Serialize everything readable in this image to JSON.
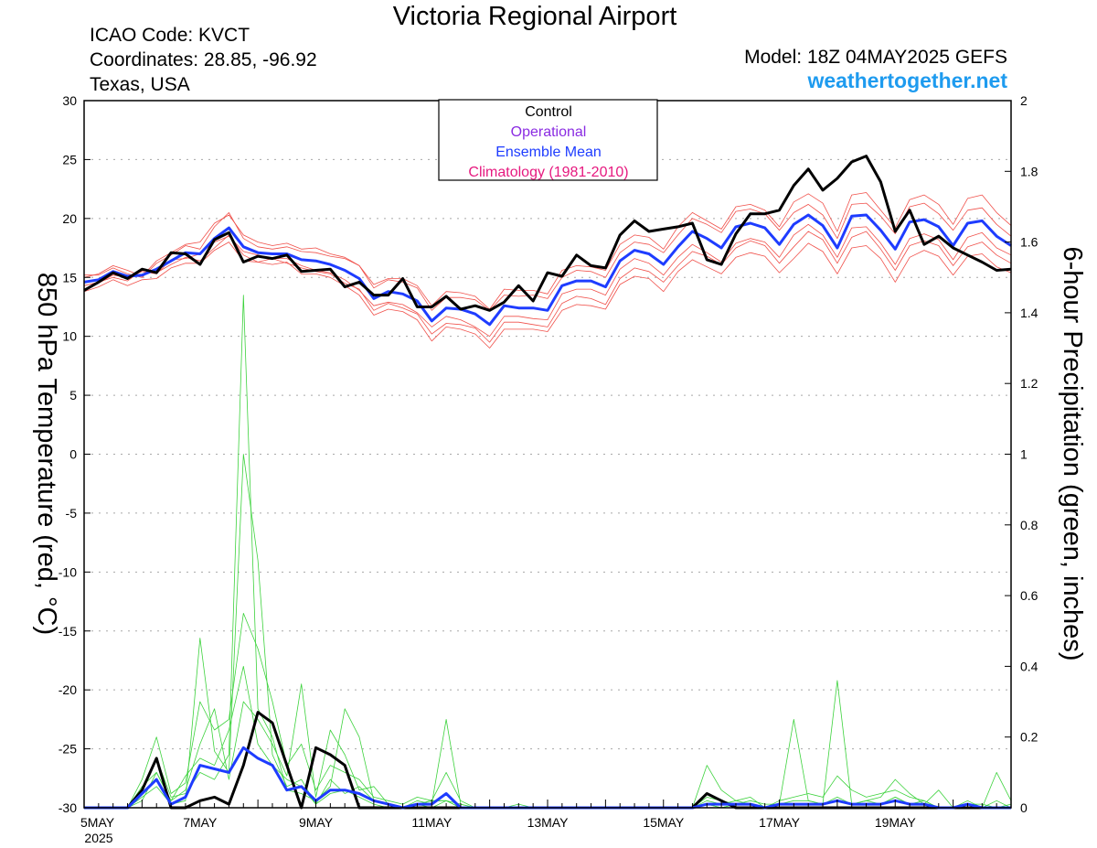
{
  "header": {
    "title": "Victoria Regional Airport",
    "icao": "ICAO Code: KVCT",
    "coordinates": "Coordinates: 28.85, -96.92",
    "region": "Texas, USA",
    "model": "Model: 18Z 04MAY2025 GEFS",
    "site": "weathertogether.net"
  },
  "colors": {
    "control": "#000000",
    "operational": "#8a2be2",
    "ensemble_mean": "#1e3cff",
    "climatology": "#e6197f",
    "temperature_members": "#f0504a",
    "precip_members": "#3cd23c",
    "site": "#1e9bef"
  },
  "chart_data": {
    "type": "line",
    "title": "Victoria Regional Airport",
    "xlabel": "",
    "y_left_label": "850 hPa Temperature (red, °C)",
    "y_right_label": "6-hour Precipitation (green, inches)",
    "y_left_lim": [
      -30,
      30
    ],
    "y_left_ticks": [
      "30",
      "25",
      "20",
      "15",
      "10",
      "5",
      "0",
      "-5",
      "-10",
      "-15",
      "-20",
      "-25",
      "-30"
    ],
    "y_right_lim": [
      0,
      2
    ],
    "y_right_ticks": [
      "2",
      "1.8",
      "1.6",
      "1.4",
      "1.2",
      "1",
      "0.8",
      "0.6",
      "0.4",
      "0.2",
      "0"
    ],
    "x_range_days": [
      0,
      16
    ],
    "x_tick_labels": [
      {
        "day": 0,
        "label": "5MAY"
      },
      {
        "day": 2,
        "label": "7MAY"
      },
      {
        "day": 4,
        "label": "9MAY"
      },
      {
        "day": 6,
        "label": "11MAY"
      },
      {
        "day": 8,
        "label": "13MAY"
      },
      {
        "day": 10,
        "label": "15MAY"
      },
      {
        "day": 12,
        "label": "17MAY"
      },
      {
        "day": 14,
        "label": "19MAY"
      }
    ],
    "x_year_label": "2025",
    "grid": true,
    "legend_position": "top-center",
    "legend": [
      "Control",
      "Operational",
      "Ensemble Mean",
      "Climatology (1981-2010)"
    ],
    "step_hours": 6,
    "series": [
      {
        "name": "Control",
        "axis": "left",
        "values": [
          13.9,
          14.6,
          15.4,
          14.9,
          15.7,
          15.4,
          17.1,
          17.0,
          16.1,
          18.2,
          18.8,
          16.3,
          16.8,
          16.6,
          16.9,
          15.5,
          15.6,
          15.7,
          14.2,
          14.6,
          13.5,
          13.5,
          14.9,
          12.5,
          12.5,
          13.4,
          12.3,
          12.6,
          12.2,
          12.9,
          14.3,
          13.0,
          15.4,
          15.1,
          16.9,
          16.0,
          15.8,
          18.6,
          19.8,
          18.9,
          19.1,
          19.3,
          19.6,
          16.5,
          16.1,
          18.7,
          20.4,
          20.4,
          20.7,
          22.8,
          24.2,
          22.4,
          23.4,
          24.8,
          25.3,
          23.1,
          18.9,
          20.7,
          17.8,
          18.5,
          17.5,
          16.9,
          16.3,
          15.6,
          15.7
        ]
      },
      {
        "name": "Ensemble Mean",
        "axis": "left",
        "values": [
          14.6,
          14.8,
          15.5,
          15.1,
          15.2,
          15.7,
          16.4,
          17.1,
          17.0,
          18.3,
          19.2,
          17.6,
          17.1,
          17.0,
          17.0,
          16.5,
          16.4,
          16.1,
          15.6,
          14.9,
          13.2,
          13.8,
          13.6,
          13.0,
          11.3,
          12.4,
          12.3,
          11.9,
          11.0,
          12.6,
          12.4,
          12.4,
          12.2,
          14.3,
          14.7,
          14.7,
          14.2,
          16.4,
          17.3,
          17.0,
          16.1,
          17.6,
          18.9,
          18.3,
          17.5,
          19.3,
          19.6,
          19.2,
          17.8,
          19.5,
          20.3,
          19.4,
          17.5,
          20.2,
          20.3,
          19.0,
          17.4,
          19.7,
          19.9,
          19.3,
          17.7,
          19.6,
          19.8,
          18.5,
          17.7
        ]
      },
      {
        "name": "Control precip",
        "axis": "right",
        "values": [
          0,
          0,
          0,
          0,
          0.05,
          0.14,
          0,
          0,
          0.02,
          0.03,
          0.01,
          0.12,
          0.27,
          0.24,
          0.12,
          0,
          0.17,
          0.15,
          0.12,
          0,
          0,
          0,
          0,
          0,
          0,
          0,
          0,
          0,
          0,
          0,
          0,
          0,
          0,
          0,
          0,
          0,
          0,
          0,
          0,
          0,
          0,
          0,
          0,
          0.04,
          0.02,
          0,
          0,
          0,
          0,
          0,
          0,
          0,
          0,
          0,
          0,
          0,
          0,
          0,
          0,
          0,
          0,
          0,
          0,
          0,
          0
        ]
      },
      {
        "name": "Ensemble Mean precip",
        "axis": "right",
        "values": [
          0,
          0,
          0,
          0,
          0.04,
          0.08,
          0.01,
          0.03,
          0.12,
          0.11,
          0.1,
          0.17,
          0.14,
          0.12,
          0.05,
          0.06,
          0.02,
          0.05,
          0.05,
          0.04,
          0.02,
          0.01,
          0,
          0.01,
          0.01,
          0.04,
          0,
          0,
          0,
          0,
          0,
          0,
          0,
          0,
          0,
          0,
          0,
          0,
          0,
          0,
          0,
          0,
          0,
          0.01,
          0.01,
          0.01,
          0.01,
          0,
          0.01,
          0.01,
          0.01,
          0.01,
          0.02,
          0.01,
          0.01,
          0.01,
          0.02,
          0.01,
          0.01,
          0,
          0,
          0.01,
          0,
          0,
          0
        ]
      },
      {
        "name": "Members temperature",
        "axis": "left",
        "values": [
          [
            14.0,
            14.5,
            15.2,
            15.0,
            15.5,
            15.3,
            16.5,
            16.6,
            17.0,
            18.0,
            18.5,
            17.2,
            16.9,
            16.6,
            16.6,
            16.0,
            15.6,
            15.4,
            14.8,
            13.9,
            12.6,
            12.9,
            12.7,
            12.0,
            10.8,
            11.7,
            11.4,
            10.8,
            10.0,
            11.7,
            11.7,
            11.5,
            11.4,
            13.6,
            14.0,
            14.0,
            13.5,
            15.7,
            16.6,
            16.2,
            15.2,
            16.7,
            17.8,
            17.1,
            16.3,
            17.9,
            18.3,
            18.0,
            16.7,
            18.6,
            19.5,
            18.6,
            16.7,
            19.2,
            19.3,
            17.9,
            16.1,
            18.3,
            18.7,
            18.2,
            16.5,
            18.4,
            18.8,
            17.5,
            16.9
          ],
          [
            15.2,
            15.2,
            15.8,
            15.3,
            15.0,
            16.2,
            16.9,
            17.7,
            17.4,
            19.3,
            20.5,
            18.3,
            17.6,
            17.4,
            17.6,
            17.2,
            17.1,
            16.8,
            16.6,
            16.0,
            14.1,
            14.8,
            14.6,
            14.1,
            12.2,
            13.3,
            13.3,
            13.1,
            12.2,
            13.5,
            13.4,
            13.5,
            13.2,
            15.0,
            15.6,
            15.5,
            15.0,
            17.1,
            18.0,
            17.8,
            17.1,
            18.6,
            20.0,
            19.5,
            18.8,
            20.6,
            20.8,
            20.4,
            19.0,
            20.5,
            21.2,
            20.3,
            18.3,
            21.2,
            21.3,
            20.2,
            18.7,
            21.0,
            21.3,
            20.4,
            19.0,
            20.7,
            20.9,
            19.5,
            18.5
          ],
          [
            14.3,
            14.6,
            15.0,
            14.7,
            15.6,
            15.4,
            16.1,
            16.7,
            16.4,
            17.5,
            18.6,
            16.9,
            16.3,
            16.6,
            16.2,
            15.8,
            15.5,
            15.3,
            14.5,
            14.0,
            12.2,
            12.8,
            12.4,
            11.9,
            10.2,
            11.1,
            11.0,
            10.7,
            9.5,
            11.2,
            11.2,
            11.0,
            10.8,
            12.8,
            13.4,
            13.2,
            12.7,
            14.9,
            15.8,
            15.5,
            14.6,
            16.0,
            17.2,
            16.8,
            16.1,
            17.5,
            18.1,
            17.7,
            16.2,
            17.6,
            18.9,
            18.2,
            16.2,
            18.4,
            18.9,
            17.4,
            15.6,
            17.7,
            18.1,
            17.7,
            16.0,
            17.6,
            18.0,
            16.9,
            16.2
          ],
          [
            15.0,
            15.3,
            16.0,
            15.6,
            15.1,
            16.4,
            17.1,
            17.8,
            18.0,
            19.6,
            20.3,
            18.6,
            18.0,
            17.7,
            17.9,
            17.4,
            17.5,
            17.0,
            16.7,
            16.0,
            14.4,
            14.9,
            14.9,
            14.3,
            12.6,
            13.8,
            13.7,
            13.4,
            12.3,
            14.0,
            13.9,
            13.9,
            13.6,
            15.6,
            16.0,
            15.9,
            15.6,
            17.8,
            18.6,
            18.4,
            17.4,
            19.3,
            20.5,
            19.8,
            19.1,
            21.0,
            21.2,
            20.7,
            19.3,
            21.4,
            22.1,
            21.3,
            18.9,
            22.0,
            22.2,
            20.7,
            19.2,
            21.6,
            22.0,
            21.2,
            19.5,
            21.7,
            22.0,
            20.5,
            19.4
          ],
          [
            13.8,
            14.2,
            14.8,
            14.3,
            14.8,
            14.9,
            15.8,
            16.2,
            16.2,
            17.3,
            18.0,
            16.4,
            16.3,
            16.1,
            16.3,
            15.3,
            15.3,
            15.0,
            14.3,
            13.5,
            11.8,
            12.3,
            12.1,
            11.4,
            9.6,
            10.8,
            10.6,
            10.2,
            9.0,
            10.6,
            10.6,
            10.6,
            10.4,
            12.2,
            12.7,
            12.6,
            12.3,
            14.4,
            15.1,
            14.9,
            13.8,
            15.5,
            16.5,
            15.9,
            15.3,
            16.7,
            17.1,
            16.8,
            15.4,
            16.6,
            17.9,
            17.2,
            15.3,
            17.5,
            17.7,
            16.6,
            14.6,
            16.7,
            17.3,
            16.8,
            15.2,
            16.8,
            17.0,
            15.9,
            15.4
          ]
        ]
      },
      {
        "name": "Members precip",
        "axis": "right",
        "values": [
          [
            0,
            0,
            0,
            0,
            0.08,
            0.2,
            0.04,
            0.07,
            0.3,
            0.22,
            0.25,
            0.55,
            0.45,
            0.3,
            0.12,
            0.18,
            0.05,
            0.12,
            0.1,
            0.08,
            0.03,
            0.02,
            0.01,
            0.03,
            0.02,
            0.1,
            0.02,
            0,
            0,
            0,
            0,
            0,
            0,
            0,
            0,
            0,
            0,
            0,
            0,
            0,
            0,
            0,
            0,
            0.12,
            0.05,
            0.02,
            0.03,
            0,
            0.02,
            0.03,
            0.04,
            0.03,
            0.09,
            0.05,
            0.03,
            0.04,
            0.05,
            0.03,
            0.02,
            0,
            0,
            0.01,
            0,
            0,
            0.01
          ],
          [
            0,
            0,
            0,
            0,
            0.02,
            0.1,
            0.02,
            0.05,
            0.18,
            0.28,
            0.08,
            0.3,
            0.25,
            0.18,
            0.09,
            0.35,
            0.03,
            0.22,
            0.15,
            0.05,
            0.06,
            0.01,
            0,
            0.02,
            0.01,
            0.25,
            0.01,
            0,
            0,
            0,
            0.01,
            0,
            0,
            0,
            0,
            0,
            0,
            0,
            0,
            0,
            0,
            0,
            0,
            0.01,
            0,
            0.01,
            0.02,
            0.01,
            0.01,
            0.02,
            0.02,
            0.01,
            0.03,
            0.01,
            0.02,
            0.03,
            0.08,
            0.04,
            0.01,
            0,
            0,
            0.02,
            0,
            0.02,
            0
          ],
          [
            0,
            0,
            0,
            0,
            0.05,
            0.14,
            0.03,
            0.04,
            0.1,
            0.08,
            0.15,
            1.45,
            0.28,
            0.2,
            0.05,
            0.04,
            0.02,
            0.06,
            0.28,
            0.2,
            0.02,
            0.01,
            0,
            0.01,
            0.02,
            0.02,
            0,
            0,
            0,
            0,
            0,
            0,
            0,
            0,
            0,
            0,
            0,
            0,
            0,
            0,
            0,
            0,
            0,
            0.03,
            0.02,
            0.01,
            0.01,
            0,
            0.01,
            0.25,
            0.02,
            0.01,
            0.02,
            0.01,
            0.01,
            0.01,
            0.03,
            0.01,
            0.02,
            0,
            0,
            0.01,
            0,
            0,
            0
          ],
          [
            0,
            0,
            0,
            0,
            0.03,
            0.06,
            0.01,
            0.02,
            0.48,
            0.16,
            0.1,
            1.0,
            0.7,
            0.15,
            0.06,
            0.08,
            0.01,
            0.04,
            0.05,
            0.03,
            0.01,
            0,
            0,
            0.01,
            0,
            0.02,
            0,
            0,
            0,
            0,
            0,
            0,
            0,
            0,
            0,
            0,
            0,
            0,
            0,
            0,
            0,
            0,
            0,
            0.01,
            0,
            0.01,
            0.01,
            0,
            0.01,
            0.01,
            0.01,
            0.01,
            0.36,
            0.01,
            0.02,
            0.01,
            0.03,
            0.01,
            0.01,
            0.05,
            0,
            0.01,
            0.01,
            0,
            0
          ],
          [
            0,
            0,
            0,
            0,
            0.06,
            0.1,
            0.02,
            0.09,
            0.14,
            0.12,
            0.22,
            0.4,
            0.18,
            0.12,
            0.08,
            0.06,
            0.01,
            0.08,
            0.04,
            0.06,
            0.02,
            0.01,
            0,
            0.01,
            0.02,
            0.02,
            0.01,
            0,
            0,
            0,
            0,
            0,
            0,
            0,
            0,
            0,
            0,
            0,
            0,
            0,
            0,
            0,
            0,
            0.02,
            0.01,
            0.02,
            0.01,
            0,
            0.01,
            0.01,
            0.01,
            0.01,
            0.02,
            0.01,
            0.01,
            0.01,
            0.02,
            0.01,
            0.01,
            0,
            0,
            0.01,
            0,
            0.1,
            0.02
          ]
        ]
      }
    ]
  }
}
